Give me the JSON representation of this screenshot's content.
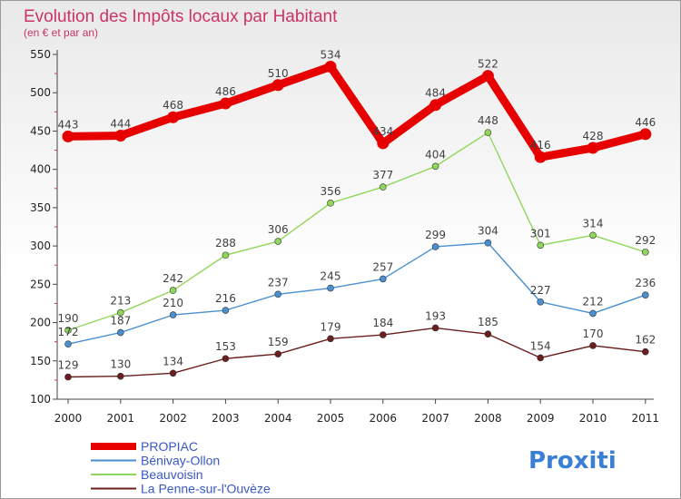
{
  "chart_data": {
    "type": "line",
    "title": "Evolution des Impôts locaux par Habitant",
    "subtitle": "(en € et par an)",
    "xlabel": "",
    "ylabel": "",
    "ylim": [
      100,
      550
    ],
    "yticks": [
      "100",
      "150",
      "200",
      "250",
      "300",
      "350",
      "400",
      "450",
      "500",
      "550"
    ],
    "categories": [
      "2000",
      "2001",
      "2002",
      "2003",
      "2004",
      "2005",
      "2006",
      "2007",
      "2008",
      "2009",
      "2010",
      "2011"
    ],
    "series": [
      {
        "name": "La Penne-sur-l'Ouvèze",
        "color": "#6b1e1e",
        "values": [
          129,
          130,
          134,
          153,
          159,
          179,
          184,
          193,
          185,
          154,
          170,
          162
        ]
      },
      {
        "name": "Bénivay-Ollon",
        "color": "#4a8fd0",
        "values": [
          172,
          187,
          210,
          216,
          237,
          245,
          257,
          299,
          304,
          227,
          212,
          236
        ]
      },
      {
        "name": "Beauvoisin",
        "color": "#8fd65a",
        "values": [
          190,
          213,
          242,
          288,
          306,
          356,
          377,
          404,
          448,
          301,
          314,
          292
        ]
      },
      {
        "name": "PROPIAC",
        "color": "#e60000",
        "values": [
          443,
          444,
          468,
          486,
          510,
          534,
          434,
          484,
          522,
          416,
          428,
          446
        ]
      }
    ],
    "value_labels": {
      "PROPIAC": [
        "443",
        "444",
        "468",
        "486",
        "510",
        "534",
        "434",
        "484",
        "522",
        "416",
        "428",
        "446"
      ],
      "Beauvoisin": [
        "190",
        "213",
        "242",
        "288",
        "306",
        "356",
        "377",
        "404",
        "448",
        "301",
        "314",
        "292"
      ],
      "Bénivay-Ollon": [
        "172",
        "187",
        "210",
        "216",
        "237",
        "245",
        "257",
        "299",
        "304",
        "227",
        "212",
        "236"
      ],
      "La Penne-sur-l'Ouvèze": [
        "129",
        "130",
        "134",
        "153",
        "159",
        "179",
        "184",
        "193",
        "185",
        "154",
        "170",
        "162"
      ]
    },
    "legend": {
      "placement": "bottom-left",
      "entries": [
        "PROPIAC",
        "Bénivay-Ollon",
        "Beauvoisin",
        "La Penne-sur-l'Ouvèze"
      ],
      "label_color": "#3a57c6"
    },
    "grid": false
  },
  "logo": {
    "text": "Proxiti"
  }
}
